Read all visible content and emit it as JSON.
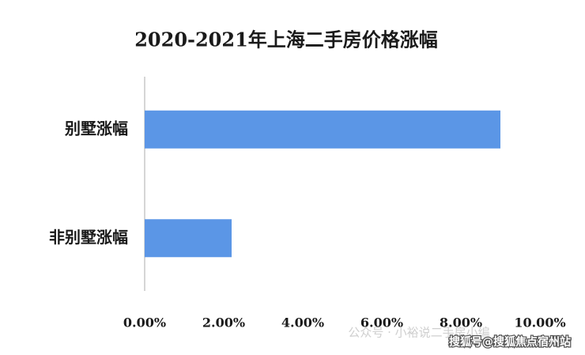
{
  "chart_data": {
    "type": "hbar",
    "title": "2020-2021年上海二手房价格涨幅",
    "categories": [
      "别墅涨幅",
      "非别墅涨幅"
    ],
    "values": [
      9.0,
      2.2
    ],
    "color": "#5b96e6",
    "xlim": [
      0,
      10
    ],
    "xticks": [
      {
        "value": 0,
        "label": "0.00%"
      },
      {
        "value": 2,
        "label": "2.00%"
      },
      {
        "value": 4,
        "label": "4.00%"
      },
      {
        "value": 6,
        "label": "6.00%"
      },
      {
        "value": 8,
        "label": "8.00%"
      },
      {
        "value": 10,
        "label": "10.00%"
      }
    ]
  },
  "watermarks": [
    "公众号 · 小裕说二手房小编",
    "搜狐号@搜狐焦点宿州站"
  ]
}
